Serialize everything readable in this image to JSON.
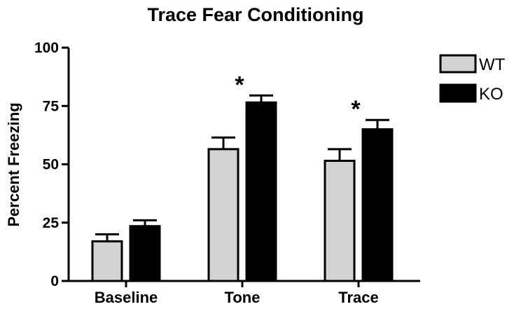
{
  "chart_data": {
    "type": "bar",
    "title": "Trace Fear Conditioning",
    "xlabel": "",
    "ylabel": "Percent Freezing",
    "ylim": [
      0,
      100
    ],
    "yticks": [
      0,
      25,
      50,
      75,
      100
    ],
    "categories": [
      "Baseline",
      "Tone",
      "Trace"
    ],
    "series": [
      {
        "name": "WT",
        "values": [
          17,
          56.5,
          51.5
        ],
        "errors": [
          3,
          5,
          5
        ],
        "color": "#d3d3d3"
      },
      {
        "name": "KO",
        "values": [
          23.5,
          76.5,
          65
        ],
        "errors": [
          2.5,
          3,
          4
        ],
        "color": "#000000"
      }
    ],
    "significance": [
      {
        "category": "Tone",
        "label": "*"
      },
      {
        "category": "Trace",
        "label": "*"
      }
    ],
    "grid": false,
    "legend_position": "top-right"
  }
}
